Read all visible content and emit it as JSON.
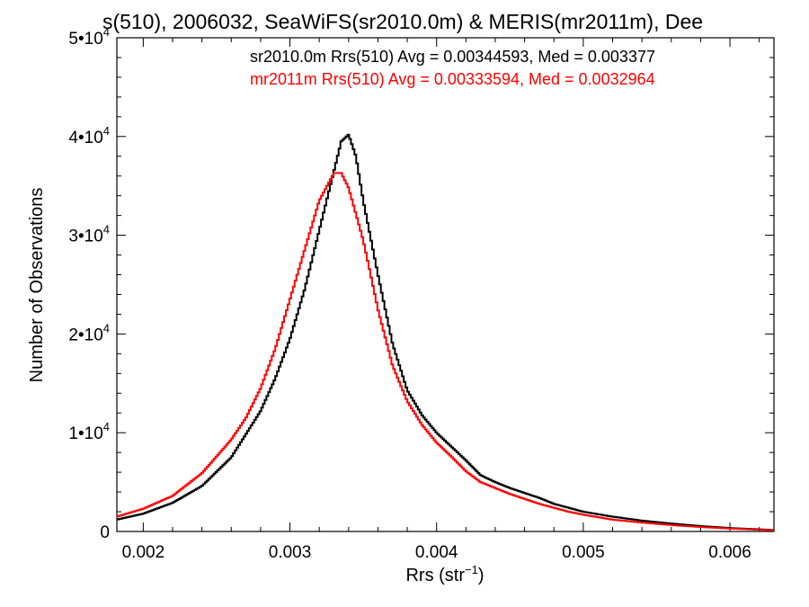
{
  "chart_data": {
    "type": "line",
    "title": "s(510), 2006032, SeaWiFS(sr2010.0m) & MERIS(mr2011m), Dee",
    "xlabel": "Rrs (str",
    "xlabel_sup": "−1",
    "xlabel_close": ")",
    "ylabel": "Number of Observations",
    "xlim": [
      0.00182,
      0.0063
    ],
    "ylim": [
      0,
      50000
    ],
    "x_ticks": [
      {
        "value": 0.002,
        "label": "0.002"
      },
      {
        "value": 0.003,
        "label": "0.003"
      },
      {
        "value": 0.004,
        "label": "0.004"
      },
      {
        "value": 0.005,
        "label": "0.005"
      },
      {
        "value": 0.006,
        "label": "0.006"
      }
    ],
    "y_ticks": [
      {
        "value": 0,
        "label": "0",
        "sup": ""
      },
      {
        "value": 10000,
        "label": "1•10",
        "sup": "4"
      },
      {
        "value": 20000,
        "label": "2•10",
        "sup": "4"
      },
      {
        "value": 30000,
        "label": "3•10",
        "sup": "4"
      },
      {
        "value": 40000,
        "label": "4•10",
        "sup": "4"
      },
      {
        "value": 50000,
        "label": "5•10",
        "sup": "4"
      }
    ],
    "grid": false,
    "legend_position": "top-right",
    "series": [
      {
        "name": "sr2010.0m Rrs(510) Avg = 0.00344593, Med = 0.003377",
        "color": "#000000",
        "points": [
          [
            0.00182,
            1200
          ],
          [
            0.002,
            1800
          ],
          [
            0.0022,
            2900
          ],
          [
            0.0024,
            4600
          ],
          [
            0.0026,
            7500
          ],
          [
            0.0028,
            12200
          ],
          [
            0.0029,
            15500
          ],
          [
            0.003,
            19500
          ],
          [
            0.0031,
            24500
          ],
          [
            0.0032,
            30500
          ],
          [
            0.0033,
            36500
          ],
          [
            0.00335,
            39500
          ],
          [
            0.0034,
            40200
          ],
          [
            0.00345,
            38000
          ],
          [
            0.0035,
            33500
          ],
          [
            0.0036,
            26000
          ],
          [
            0.0037,
            19000
          ],
          [
            0.0038,
            14300
          ],
          [
            0.0039,
            11800
          ],
          [
            0.004,
            10000
          ],
          [
            0.0041,
            8600
          ],
          [
            0.0042,
            7200
          ],
          [
            0.0043,
            5700
          ],
          [
            0.0044,
            5000
          ],
          [
            0.0045,
            4400
          ],
          [
            0.0046,
            3900
          ],
          [
            0.0047,
            3400
          ],
          [
            0.0048,
            2800
          ],
          [
            0.0049,
            2400
          ],
          [
            0.005,
            2000
          ],
          [
            0.0052,
            1500
          ],
          [
            0.0054,
            1100
          ],
          [
            0.0056,
            800
          ],
          [
            0.0058,
            550
          ],
          [
            0.006,
            350
          ],
          [
            0.0063,
            150
          ]
        ]
      },
      {
        "name": "mr2011m Rrs(510) Avg = 0.00333594, Med = 0.0032964",
        "color": "#ff0000",
        "points": [
          [
            0.00182,
            1500
          ],
          [
            0.002,
            2300
          ],
          [
            0.0022,
            3600
          ],
          [
            0.0024,
            5900
          ],
          [
            0.0026,
            9300
          ],
          [
            0.0027,
            11500
          ],
          [
            0.0028,
            14500
          ],
          [
            0.0029,
            18500
          ],
          [
            0.003,
            23500
          ],
          [
            0.0031,
            28500
          ],
          [
            0.0032,
            33500
          ],
          [
            0.0033,
            36300
          ],
          [
            0.00335,
            36300
          ],
          [
            0.0034,
            34800
          ],
          [
            0.0035,
            29500
          ],
          [
            0.0036,
            22500
          ],
          [
            0.0037,
            16800
          ],
          [
            0.0038,
            13200
          ],
          [
            0.0039,
            10800
          ],
          [
            0.004,
            9000
          ],
          [
            0.0041,
            7600
          ],
          [
            0.0042,
            6100
          ],
          [
            0.0043,
            5000
          ],
          [
            0.0044,
            4400
          ],
          [
            0.0045,
            3800
          ],
          [
            0.0046,
            3300
          ],
          [
            0.0047,
            2800
          ],
          [
            0.0048,
            2400
          ],
          [
            0.0049,
            2000
          ],
          [
            0.005,
            1700
          ],
          [
            0.0052,
            1200
          ],
          [
            0.0054,
            900
          ],
          [
            0.0056,
            650
          ],
          [
            0.0058,
            450
          ],
          [
            0.006,
            300
          ],
          [
            0.0063,
            120
          ]
        ]
      }
    ]
  }
}
